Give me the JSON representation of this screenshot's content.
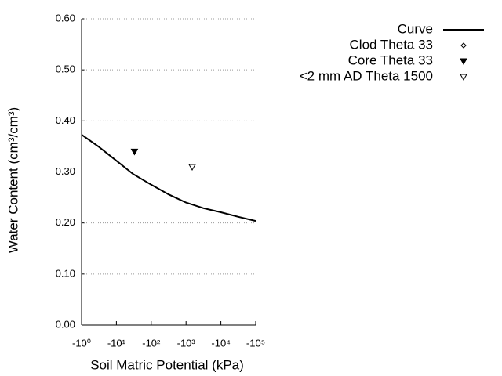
{
  "chart_data": {
    "type": "line",
    "x_label": "Soil Matric Potential (kPa)",
    "y_label": "Water Content (cm³/cm³)",
    "xscale": "log",
    "xlim": [
      -1,
      -100000
    ],
    "xticks": [
      {
        "value": -1,
        "label": "-10⁰"
      },
      {
        "value": -10,
        "label": "-10¹"
      },
      {
        "value": -100,
        "label": "-10²"
      },
      {
        "value": -1000,
        "label": "-10³"
      },
      {
        "value": -10000,
        "label": "-10⁴"
      },
      {
        "value": -100000,
        "label": "-10⁵"
      }
    ],
    "ylim": [
      0,
      0.6
    ],
    "yticks": [
      {
        "value": 0,
        "label": "0.00"
      },
      {
        "value": 0.1,
        "label": "0.10"
      },
      {
        "value": 0.2,
        "label": "0.20"
      },
      {
        "value": 0.3,
        "label": "0.30"
      },
      {
        "value": 0.4,
        "label": "0.40"
      },
      {
        "value": 0.5,
        "label": "0.50"
      },
      {
        "value": 0.6,
        "label": "0.60"
      }
    ],
    "grid": true,
    "legend": "top-right",
    "series": [
      {
        "name": "Curve",
        "color": "#000000",
        "marker": "line",
        "x": [
          -1,
          -3.16,
          -10,
          -30,
          -100,
          -316,
          -1000,
          -3162,
          -10000,
          -31623,
          -100000
        ],
        "values": [
          0.373,
          0.349,
          0.322,
          0.296,
          0.275,
          0.256,
          0.24,
          0.229,
          0.221,
          0.212,
          0.204
        ]
      },
      {
        "name": "Clod Theta 33",
        "color": "#000000",
        "marker": "diamond-open",
        "x": [],
        "values": []
      },
      {
        "name": "Core Theta 33",
        "color": "#000000",
        "marker": "triangle-down-filled",
        "x": [
          -33
        ],
        "values": [
          0.34
        ]
      },
      {
        "name": "<2 mm AD Theta 1500",
        "color": "#000000",
        "marker": "triangle-down-open",
        "x": [
          -1500
        ],
        "values": [
          0.31
        ]
      }
    ]
  }
}
